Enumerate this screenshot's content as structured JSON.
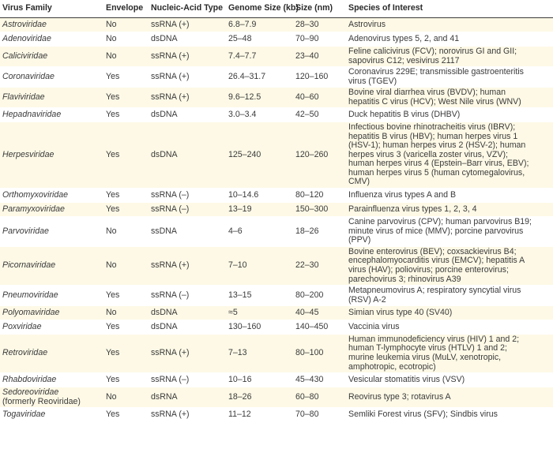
{
  "headers": [
    "Virus Family",
    "Envelope",
    "Nucleic-Acid Type",
    "Genome Size (kb)",
    "Size (nm)",
    "Species of Interest"
  ],
  "rows": [
    {
      "family": "Astroviridae",
      "envelope": "No",
      "na": "ssRNA (+)",
      "genome": "6.8–7.9",
      "size": "28–30",
      "species": [
        "Astrovirus"
      ]
    },
    {
      "family": "Adenoviridae",
      "envelope": "No",
      "na": "dsDNA",
      "genome": "25–48",
      "size": "70–90",
      "species": [
        "Adenovirus types 5, 2, and 41"
      ]
    },
    {
      "family": "Caliciviridae",
      "envelope": "No",
      "na": "ssRNA (+)",
      "genome": "7.4–7.7",
      "size": "23–40",
      "species": [
        "Feline calicivirus (FCV); norovirus GI and GII;",
        "sapovirus C12; vesivirus 2117"
      ]
    },
    {
      "family": "Coronaviridae",
      "envelope": "Yes",
      "na": "ssRNA (+)",
      "genome": "26.4–31.7",
      "size": "120–160",
      "species": [
        "Coronavirus 229E; transmissible gastroenteritis",
        "virus (TGEV)"
      ]
    },
    {
      "family": "Flaviviridae",
      "envelope": "Yes",
      "na": "ssRNA (+)",
      "genome": "9.6–12.5",
      "size": "40–60",
      "species": [
        "Bovine viral diarrhea virus (BVDV); human",
        "hepatitis C virus (HCV); West Nile virus (WNV)"
      ]
    },
    {
      "family": "Hepadnaviridae",
      "envelope": "Yes",
      "na": "dsDNA",
      "genome": "3.0–3.4",
      "size": "42–50",
      "species": [
        "Duck hepatitis B virus (DHBV)"
      ]
    },
    {
      "family": "Herpesviridae",
      "envelope": "Yes",
      "na": "dsDNA",
      "genome": "125–240",
      "size": "120–260",
      "species": [
        "Infectious bovine rhinotracheitis virus (IBRV);",
        "hepatitis B virus (HBV); human herpes virus 1",
        "(HSV-1); human herpes virus 2 (HSV-2); human",
        "herpes virus 3 (varicella zoster virus, VZV);",
        "human herpes virus 4 (Epstein–Barr virus, EBV);",
        "human herpes virus 5 (human cytomegalovirus,",
        "CMV)"
      ]
    },
    {
      "family": "Orthomyxoviridae",
      "envelope": "Yes",
      "na": "ssRNA (–)",
      "genome": "10–14.6",
      "size": "80–120",
      "species": [
        "Influenza virus types A and B"
      ]
    },
    {
      "family": "Paramyxoviridae",
      "envelope": "Yes",
      "na": "ssRNA (–)",
      "genome": "13–19",
      "size": "150–300",
      "species": [
        "Parainfluenza virus types 1, 2, 3, 4"
      ]
    },
    {
      "family": "Parvoviridae",
      "envelope": "No",
      "na": "ssDNA",
      "genome": "4–6",
      "size": "18–26",
      "species": [
        "Canine parvovirus (CPV); human parvovirus B19;",
        "minute virus of mice (MMV); porcine parvovirus",
        "(PPV)"
      ]
    },
    {
      "family": "Picornaviridae",
      "envelope": "No",
      "na": "ssRNA (+)",
      "genome": "7–10",
      "size": "22–30",
      "species": [
        "Bovine enterovirus (BEV); coxsackievirus B4;",
        "encephalomyocarditis virus (EMCV); hepatitis A",
        "virus (HAV); poliovirus; porcine enterovirus;",
        "parechovirus 3; rhinovirus A39"
      ]
    },
    {
      "family": "Pneumoviridae",
      "envelope": "Yes",
      "na": "ssRNA (–)",
      "genome": "13–15",
      "size": "80–200",
      "species": [
        "Metapneumovirus A; respiratory syncytial virus",
        "(RSV) A-2"
      ]
    },
    {
      "family": "Polyomaviridae",
      "envelope": "No",
      "na": "dsDNA",
      "genome": "≈5",
      "size": "40–45",
      "species": [
        "Simian virus type 40 (SV40)"
      ]
    },
    {
      "family": "Poxviridae",
      "envelope": "Yes",
      "na": "dsDNA",
      "genome": "130–160",
      "size": "140–450",
      "species": [
        "Vaccinia virus"
      ]
    },
    {
      "family": "Retroviridae",
      "envelope": "Yes",
      "na": "ssRNA (+)",
      "genome": "7–13",
      "size": "80–100",
      "species": [
        "Human immunodeficiency virus (HIV) 1 and 2;",
        "human T-lymphocyte virus (HTLV) 1 and 2;",
        "murine leukemia virus (MuLV, xenotropic,",
        "amphotropic, ecotropic)"
      ]
    },
    {
      "family": "Rhabdoviridae",
      "envelope": "Yes",
      "na": "ssRNA (–)",
      "genome": "10–16",
      "size": "45–430",
      "species": [
        "Vesicular stomatitis virus (VSV)"
      ]
    },
    {
      "family": "Sedoreoviridae",
      "family_note": "(formerly Reoviridae)",
      "envelope": "No",
      "na": "dsRNA",
      "genome": "18–26",
      "size": "60–80",
      "species": [
        "Reovirus type 3; rotavirus A"
      ]
    },
    {
      "family": "Togaviridae",
      "envelope": "Yes",
      "na": "ssRNA (+)",
      "genome": "11–12",
      "size": "70–80",
      "species": [
        "Semliki Forest virus (SFV); Sindbis virus"
      ]
    }
  ]
}
